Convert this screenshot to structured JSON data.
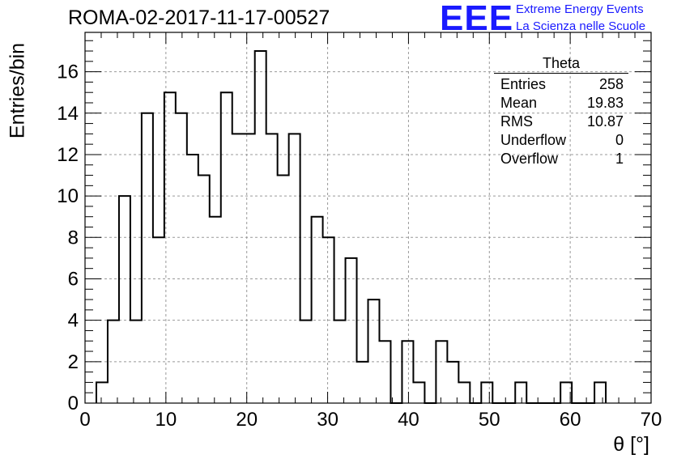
{
  "chart_data": {
    "type": "histogram",
    "title": "ROMA-02-2017-11-17-00527",
    "xlabel": "θ [°]",
    "ylabel": "Entries/bin",
    "xlim": [
      0,
      70
    ],
    "ylim": [
      0,
      17.9
    ],
    "xticks": [
      "0",
      "10",
      "20",
      "30",
      "40",
      "50",
      "60",
      "70"
    ],
    "yticks": [
      "0",
      "2",
      "4",
      "6",
      "8",
      "10",
      "12",
      "14",
      "16"
    ],
    "bin_width": 1.4,
    "bin_start": 1.4,
    "values": [
      1,
      4,
      10,
      4,
      14,
      8,
      15,
      14,
      12,
      11,
      9,
      15,
      13,
      13,
      17,
      13,
      11,
      13,
      4,
      9,
      8,
      4,
      7,
      2,
      5,
      3,
      0,
      3,
      1,
      0,
      3,
      2,
      1,
      0,
      1,
      0,
      0,
      1,
      0,
      0,
      0,
      1,
      0,
      0,
      1
    ],
    "grid": true,
    "stats": {
      "name": "Theta",
      "rows": [
        {
          "label": "Entries",
          "value": "258"
        },
        {
          "label": "Mean",
          "value": "19.83"
        },
        {
          "label": "RMS",
          "value": "10.87"
        },
        {
          "label": "Underflow",
          "value": "0"
        },
        {
          "label": "Overflow",
          "value": "1"
        }
      ]
    }
  },
  "logo": {
    "mark": "EEE",
    "line1": "Extreme Energy Events",
    "line2": "La Scienza nelle Scuole",
    "color": "#1a1aff"
  }
}
